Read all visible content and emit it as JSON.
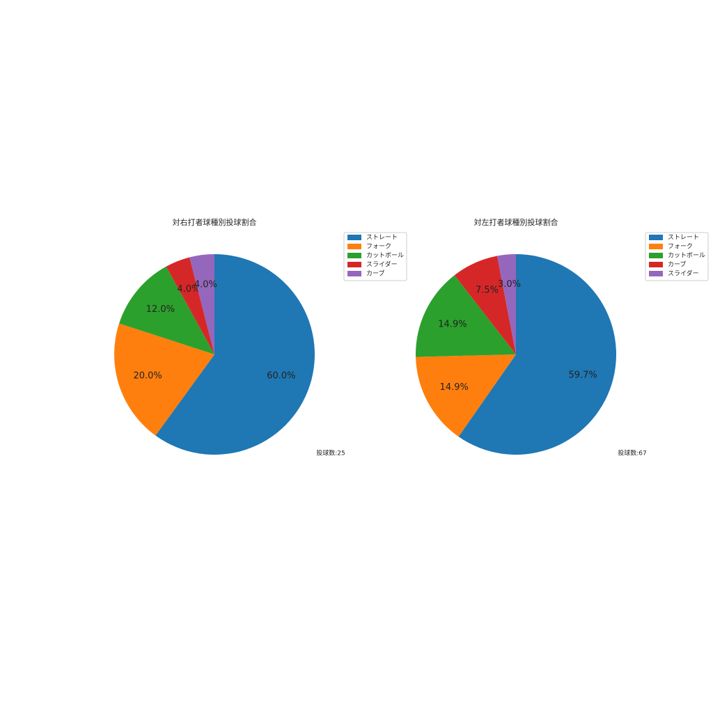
{
  "chart_data": [
    {
      "type": "pie",
      "title": "対右打者球種別投球割合",
      "categories": [
        "ストレート",
        "フォーク",
        "カットボール",
        "スライダー",
        "カーブ"
      ],
      "values": [
        60.0,
        20.0,
        12.0,
        4.0,
        4.0
      ],
      "value_labels": [
        "60.0%",
        "20.0%",
        "12.0%",
        "4.0%",
        "4.0%"
      ],
      "colors": [
        "#1f77b4",
        "#ff7f0e",
        "#2ca02c",
        "#d62728",
        "#9467bd"
      ],
      "annotation": "投球数:25",
      "legend": "upper right"
    },
    {
      "type": "pie",
      "title": "対左打者球種別投球割合",
      "categories": [
        "ストレート",
        "フォーク",
        "カットボール",
        "カーブ",
        "スライダー"
      ],
      "values": [
        59.7,
        14.9,
        14.9,
        7.5,
        3.0
      ],
      "value_labels": [
        "59.7%",
        "14.9%",
        "14.9%",
        "7.5%",
        "3.0%"
      ],
      "colors": [
        "#1f77b4",
        "#ff7f0e",
        "#2ca02c",
        "#d62728",
        "#9467bd"
      ],
      "annotation": "投球数:67",
      "legend": "upper right"
    }
  ]
}
